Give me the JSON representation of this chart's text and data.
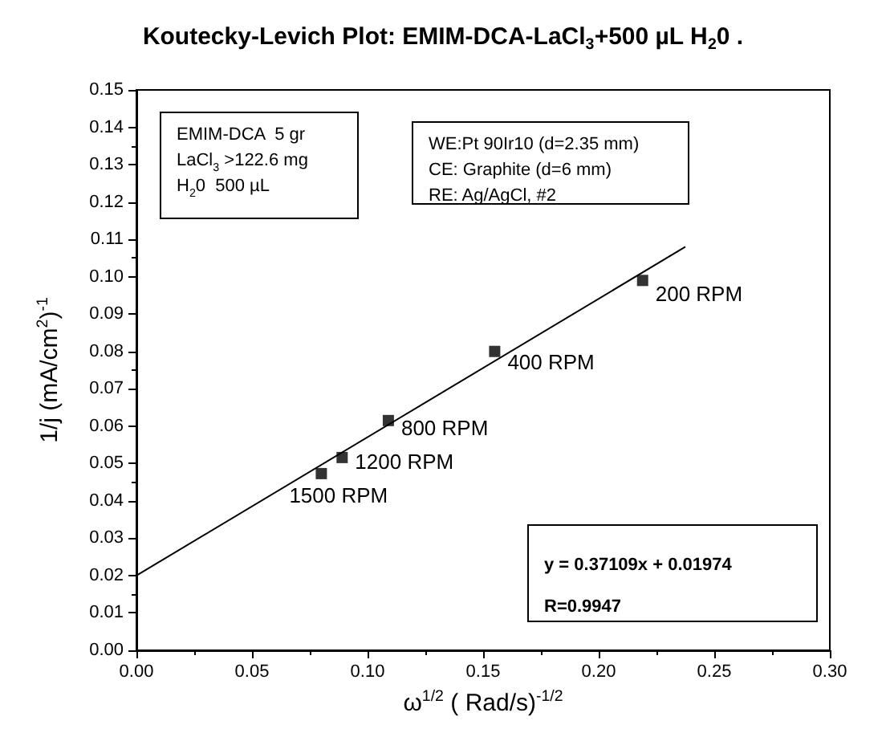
{
  "chart_data": {
    "type": "scatter",
    "title": "Koutecky-Levich Plot: EMIM-DCA-LaCl$_{3}$+500 µL H$_{2}$0 .",
    "xlabel": "ω$^{1/2}$ ( Rad/s)$^{-1/2}$",
    "ylabel": "1/j (mA/cm$^{2}$)$^{-1}$",
    "annotations": [
      "EMIM-DCA  5 gr\nLaCl$_{3}$ >122.6 mg\nH$_{2}$0  500 µL",
      "WE:Pt 90Ir10 (d=2.35 mm)\nCE: Graphite (d=6 mm)\nRE: Ag/AgCl, #2",
      "y = 0.37109x + 0.01974\nR=0.9947",
      {
        "text": "1500 RPM",
        "x": 0.08,
        "y": 0.0473
      },
      {
        "text": "1200 RPM",
        "x": 0.089,
        "y": 0.0516
      },
      {
        "text": "800 RPM",
        "x": 0.109,
        "y": 0.0615
      },
      {
        "text": "400 RPM",
        "x": 0.155,
        "y": 0.08
      },
      {
        "text": "200 RPM",
        "x": 0.219,
        "y": 0.099
      }
    ],
    "x": [
      0.08,
      0.089,
      0.109,
      0.155,
      0.219
    ],
    "series": [
      {
        "color": "#000000",
        "marker": "square",
        "values": [
          0.0473,
          0.0516,
          0.0615,
          0.08,
          0.099
        ]
      },
      {
        "type": "line",
        "color": "#000000",
        "marker": "none",
        "line_style": "solid",
        "x": [
          0,
          0.2375
        ],
        "values": [
          0.02,
          0.108
        ]
      }
    ],
    "xlim": [
      0,
      0.3
    ],
    "xticks": [
      {
        "value": 0,
        "label": "0.00"
      },
      0.05,
      {
        "value": 0.1,
        "label": "0.10"
      },
      0.15,
      {
        "value": 0.2,
        "label": "0.20"
      },
      0.25,
      {
        "value": 0.3,
        "label": "0.30"
      }
    ],
    "ylim": [
      0,
      0.15
    ],
    "yticks": [
      {
        "value": 0,
        "label": "0.00"
      },
      0.01,
      0.02,
      0.03,
      0.04,
      0.05,
      0.06,
      0.07,
      0.08,
      0.09,
      {
        "value": 0.1,
        "label": "0.10"
      },
      0.11,
      0.12,
      0.13,
      0.14,
      0.15
    ],
    "grid": false
  }
}
